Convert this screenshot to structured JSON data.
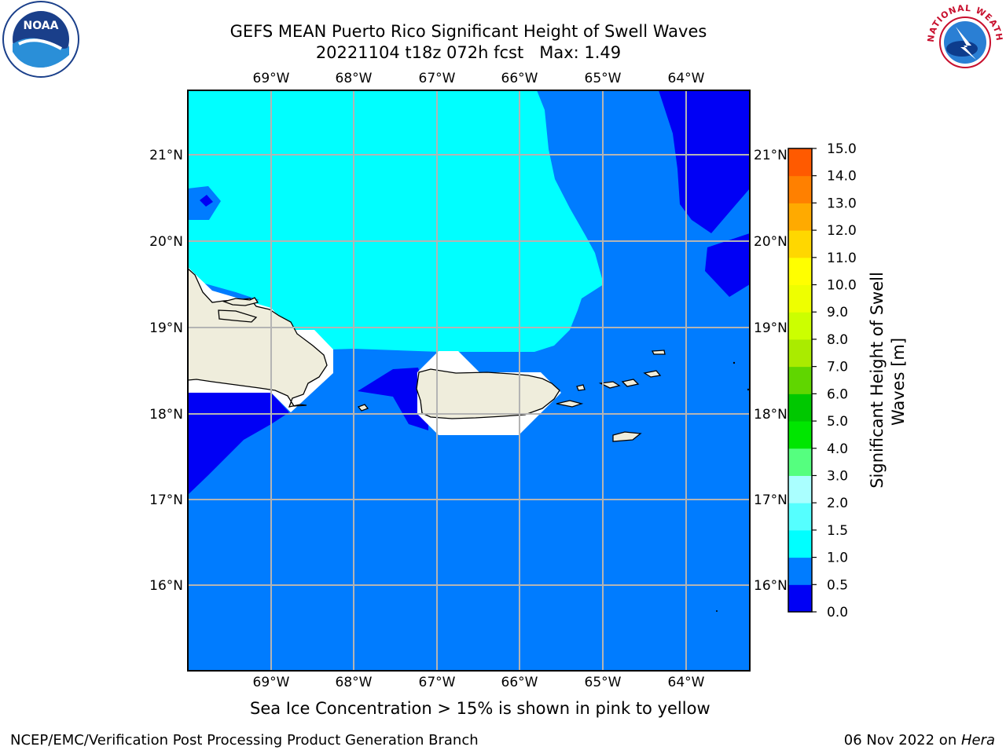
{
  "header": {
    "title_line1": "GEFS MEAN Puerto Rico Significant Height of Swell Waves",
    "title_line2": "20221104 t18z 072h fcst   Max: 1.49"
  },
  "logos": {
    "noaa": {
      "name": "noaa-logo",
      "text": "NOAA"
    },
    "nws": {
      "name": "nws-logo",
      "text": "NATIONAL WEATHER SERVICE"
    }
  },
  "map": {
    "lon_labels": [
      "69°W",
      "68°W",
      "67°W",
      "66°W",
      "65°W",
      "64°W"
    ],
    "lat_labels": [
      "21°N",
      "20°N",
      "19°N",
      "18°N",
      "17°N",
      "16°N"
    ],
    "land_color": "#efeddc",
    "mask_color": "#ffffff"
  },
  "colorbar": {
    "label_line1": "Significant Height of Swell",
    "label_line2": "Waves [m]",
    "ticks": [
      "15.0",
      "14.0",
      "13.0",
      "12.0",
      "11.0",
      "10.0",
      "9.0",
      "8.0",
      "7.0",
      "6.0",
      "5.0",
      "4.0",
      "3.0",
      "2.0",
      "1.5",
      "1.0",
      "0.5",
      "0.0"
    ],
    "colors_bottom_to_top": [
      "#0000f5",
      "#007cff",
      "#00ffff",
      "#55ffff",
      "#aaffff",
      "#55ff7f",
      "#00e600",
      "#00c800",
      "#60d600",
      "#aaeb00",
      "#ccff00",
      "#eeff00",
      "#ffff00",
      "#ffd700",
      "#ffaa00",
      "#ff8000",
      "#ff5a00",
      "#ff2a00",
      "#ff0000"
    ]
  },
  "chart_data": {
    "type": "heatmap",
    "title": "GEFS MEAN Puerto Rico Significant Height of Swell Waves",
    "subtitle": "20221104 t18z 072h fcst   Max: 1.49",
    "xlim": [
      -70.0,
      -63.3
    ],
    "ylim": [
      15.0,
      21.75
    ],
    "xticks": [
      "69°W",
      "68°W",
      "67°W",
      "66°W",
      "65°W",
      "64°W"
    ],
    "yticks": [
      "21°N",
      "20°N",
      "19°N",
      "18°N",
      "17°N",
      "16°N"
    ],
    "grid": true,
    "colorbar_levels": [
      0.0,
      0.5,
      1.0,
      1.5,
      2.0,
      3.0,
      4.0,
      5.0,
      6.0,
      7.0,
      8.0,
      9.0,
      10.0,
      11.0,
      12.0,
      13.0,
      14.0,
      15.0
    ],
    "colorbar_label": "Significant Height of Swell Waves [m]",
    "max_value": 1.49,
    "regions": [
      {
        "range": "1.0–1.5",
        "area": "north-west, north of Hispaniola and Puerto Rico"
      },
      {
        "range": "0.5–1.0",
        "area": "most of the domain, south and east"
      },
      {
        "range": "0.0–0.5",
        "area": "north-east corner, south-west near Hispaniola, west of Puerto Rico"
      }
    ]
  },
  "caption": {
    "sea_ice": "Sea Ice Concentration > 15% is shown in pink to yellow"
  },
  "footer": {
    "left": "NCEP/EMC/Verification Post Processing Product Generation Branch",
    "right_date": "06 Nov 2022 on ",
    "right_host": "Hera"
  }
}
